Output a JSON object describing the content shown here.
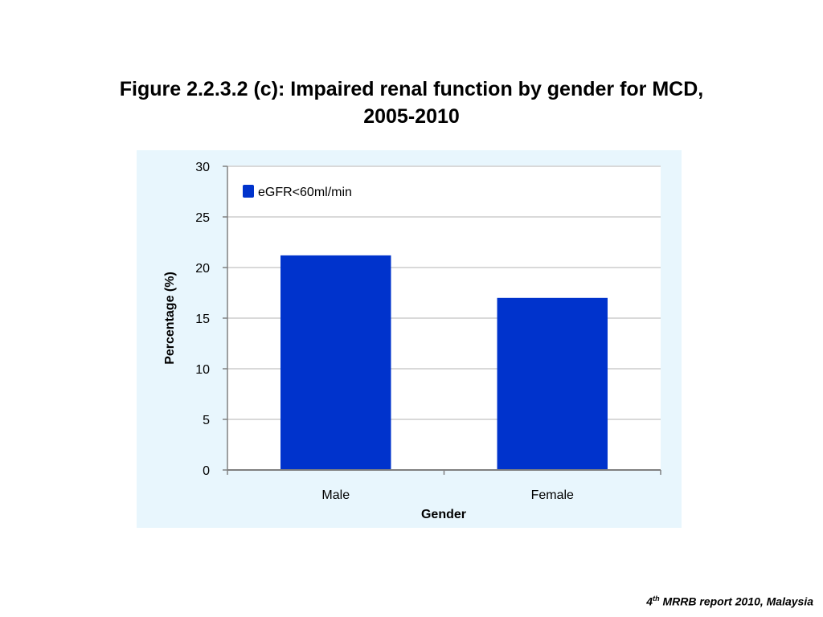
{
  "slide": {
    "title_line1": "Figure 2.2.3.2 (c): Impaired renal function by gender for MCD,",
    "title_line2": "2005-2010",
    "footer_number": "4",
    "footer_superscript": "th",
    "footer_rest": " MRRB report 2010, Malaysia"
  },
  "chart_data": {
    "type": "bar",
    "title": "",
    "xlabel": "Gender",
    "ylabel": "Percentage (%)",
    "categories": [
      "Male",
      "Female"
    ],
    "series": [
      {
        "name": "eGFR<60ml/min",
        "values": [
          21.2,
          17.0
        ],
        "color": "#0033cc"
      }
    ],
    "ylim": [
      0,
      30
    ],
    "yticks": [
      0,
      5,
      10,
      15,
      20,
      25,
      30
    ],
    "grid": true,
    "legend": "top-left",
    "colors": {
      "panel": "#e8f6fd",
      "plot": "#ffffff",
      "grid": "#d9d9d9",
      "axis": "#808080"
    }
  }
}
